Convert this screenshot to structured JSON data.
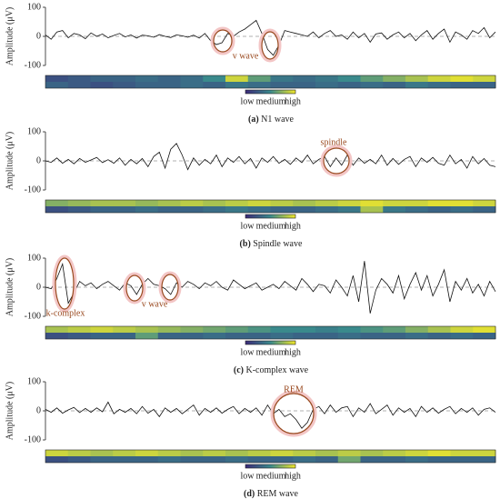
{
  "chart_data": [
    {
      "type": "line",
      "label": "(a)",
      "caption": "N1 wave",
      "ylabel": "Amplitude (μV)",
      "ylim": [
        -100,
        100
      ],
      "yticks": [
        -100,
        0,
        100
      ],
      "color": "#111111",
      "annotations": [
        "v wave"
      ],
      "values": [
        5,
        -10,
        15,
        20,
        -5,
        10,
        5,
        -8,
        12,
        0,
        8,
        -5,
        3,
        10,
        -2,
        5,
        -6,
        4,
        2,
        -3,
        6,
        0,
        -4,
        5,
        2,
        -3,
        4,
        -6,
        10,
        -15,
        -28,
        -22,
        10,
        0,
        15,
        25,
        40,
        55,
        10,
        -45,
        -65,
        -30,
        20,
        15,
        10,
        5,
        0,
        15,
        -5,
        10,
        20,
        0,
        5,
        -10,
        15,
        -5,
        10,
        -20,
        8,
        12,
        -10,
        5,
        15,
        -5,
        10,
        -15,
        5,
        20,
        -10,
        10,
        25,
        -20,
        15,
        5,
        -10,
        20,
        10,
        30,
        -5,
        15
      ],
      "attention": {
        "colorbar_labels": [
          "low",
          "medium",
          "high"
        ],
        "rows": [
          [
            0.2,
            0.25,
            0.3,
            0.3,
            0.35,
            0.3,
            0.35,
            0.5,
            0.9,
            0.6,
            0.4,
            0.35,
            0.4,
            0.5,
            0.6,
            0.7,
            0.8,
            0.9,
            0.95,
            0.9
          ],
          [
            0.3,
            0.25,
            0.2,
            0.25,
            0.3,
            0.3,
            0.35,
            0.3,
            0.4,
            0.35,
            0.3,
            0.3,
            0.35,
            0.3,
            0.35,
            0.3,
            0.4,
            0.35,
            0.3,
            0.3
          ]
        ]
      }
    },
    {
      "type": "line",
      "label": "(b)",
      "caption": "Spindle wave",
      "ylabel": "Amplitude (μV)",
      "ylim": [
        -100,
        100
      ],
      "yticks": [
        -100,
        0,
        100
      ],
      "color": "#111111",
      "annotations": [
        "spindle"
      ],
      "values": [
        0,
        -5,
        10,
        -8,
        5,
        -10,
        8,
        -5,
        3,
        12,
        -6,
        4,
        -8,
        10,
        -15,
        5,
        -10,
        8,
        -20,
        15,
        30,
        -25,
        40,
        60,
        20,
        -30,
        10,
        -15,
        5,
        -10,
        20,
        -20,
        10,
        -5,
        15,
        -10,
        8,
        -25,
        10,
        -5,
        15,
        -8,
        5,
        -12,
        10,
        -6,
        20,
        -10,
        5,
        15,
        -20,
        10,
        -15,
        20,
        -15,
        10,
        -8,
        5,
        -10,
        20,
        -15,
        8,
        -12,
        5,
        15,
        -20,
        10,
        -5,
        12,
        -8,
        -15,
        20,
        -10,
        5,
        -25,
        15,
        -10,
        8,
        -15,
        -20
      ],
      "attention": {
        "colorbar_labels": [
          "low",
          "medium",
          "high"
        ],
        "rows": [
          [
            0.7,
            0.75,
            0.8,
            0.8,
            0.75,
            0.8,
            0.85,
            0.8,
            0.85,
            0.9,
            0.85,
            0.8,
            0.85,
            0.9,
            0.95,
            0.9,
            0.9,
            0.95,
            0.95,
            0.9
          ],
          [
            0.2,
            0.25,
            0.3,
            0.3,
            0.35,
            0.3,
            0.3,
            0.35,
            0.4,
            0.35,
            0.3,
            0.3,
            0.35,
            0.4,
            0.8,
            0.4,
            0.35,
            0.3,
            0.35,
            0.3
          ]
        ]
      }
    },
    {
      "type": "line",
      "label": "(c)",
      "caption": "K-complex wave",
      "ylabel": "Amplitude (μV)",
      "ylim": [
        -100,
        100
      ],
      "yticks": [
        -100,
        0,
        100
      ],
      "color": "#111111",
      "annotations": [
        "k-complex",
        "v wave"
      ],
      "values": [
        0,
        -5,
        30,
        80,
        -55,
        -20,
        20,
        5,
        15,
        -5,
        10,
        20,
        5,
        -10,
        15,
        5,
        -25,
        10,
        30,
        10,
        5,
        -5,
        -25,
        15,
        0,
        20,
        10,
        -5,
        15,
        5,
        20,
        0,
        -10,
        25,
        10,
        -5,
        5,
        15,
        -10,
        0,
        10,
        -5,
        20,
        5,
        -10,
        30,
        10,
        -15,
        10,
        5,
        -20,
        25,
        0,
        -30,
        40,
        -50,
        90,
        -90,
        -10,
        30,
        10,
        -20,
        40,
        -40,
        10,
        50,
        -10,
        40,
        -30,
        10,
        60,
        -50,
        20,
        -10,
        30,
        -20,
        10,
        -30,
        20,
        -15
      ],
      "attention": {
        "colorbar_labels": [
          "low",
          "medium",
          "high"
        ],
        "rows": [
          [
            0.8,
            0.85,
            0.9,
            0.85,
            0.8,
            0.75,
            0.7,
            0.65,
            0.6,
            0.55,
            0.5,
            0.5,
            0.45,
            0.5,
            0.55,
            0.6,
            0.7,
            0.8,
            0.9,
            0.95
          ],
          [
            0.2,
            0.25,
            0.3,
            0.3,
            0.6,
            0.3,
            0.3,
            0.35,
            0.3,
            0.3,
            0.35,
            0.3,
            0.3,
            0.35,
            0.3,
            0.3,
            0.35,
            0.3,
            0.35,
            0.3
          ]
        ]
      }
    },
    {
      "type": "line",
      "label": "(d)",
      "caption": "REM wave",
      "ylabel": "Amplitude (μV)",
      "ylim": [
        -100,
        100
      ],
      "yticks": [
        -100,
        0,
        100
      ],
      "color": "#111111",
      "annotations": [
        "REM"
      ],
      "values": [
        5,
        -5,
        10,
        -8,
        3,
        12,
        -6,
        8,
        -5,
        10,
        -3,
        30,
        -10,
        5,
        -5,
        8,
        -10,
        15,
        -8,
        5,
        -20,
        10,
        -5,
        8,
        -10,
        5,
        20,
        -15,
        8,
        -5,
        10,
        -8,
        5,
        15,
        -10,
        8,
        -5,
        10,
        -15,
        20,
        -10,
        5,
        -20,
        -10,
        -30,
        -60,
        -40,
        5,
        15,
        -10,
        20,
        -5,
        10,
        15,
        -20,
        10,
        -5,
        25,
        -10,
        5,
        20,
        -15,
        10,
        -5,
        8,
        -20,
        15,
        -5,
        10,
        -8,
        5,
        15,
        -10,
        8,
        -5,
        10,
        -15,
        5,
        10,
        -5
      ],
      "attention": {
        "colorbar_labels": [
          "low",
          "medium",
          "high"
        ],
        "rows": [
          [
            0.9,
            0.85,
            0.8,
            0.85,
            0.9,
            0.85,
            0.8,
            0.85,
            0.8,
            0.85,
            0.9,
            0.85,
            0.8,
            0.85,
            0.8,
            0.85,
            0.9,
            0.95,
            0.9,
            0.9
          ],
          [
            0.2,
            0.25,
            0.3,
            0.3,
            0.3,
            0.35,
            0.3,
            0.3,
            0.35,
            0.3,
            0.3,
            0.35,
            0.3,
            0.65,
            0.3,
            0.3,
            0.35,
            0.3,
            0.3,
            0.3
          ]
        ]
      }
    }
  ]
}
